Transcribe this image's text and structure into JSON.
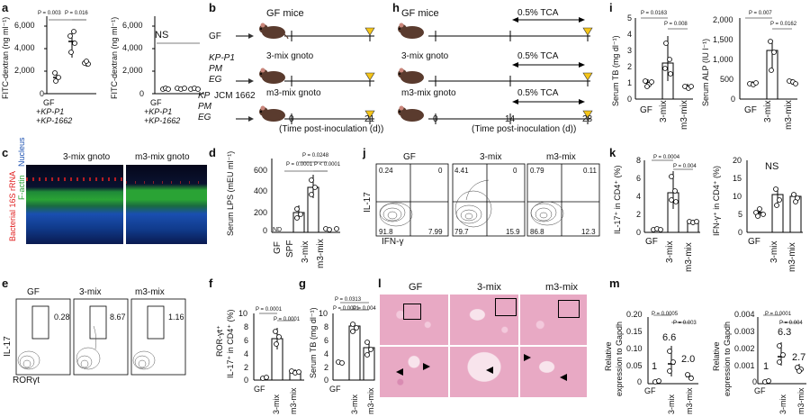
{
  "panels": {
    "a": {
      "label": "a",
      "plot1": {
        "ylabel": "FITC-dextran (ng ml⁻¹)",
        "yticks": [
          "0",
          "2,000",
          "4,000",
          "6,000"
        ],
        "groups": [
          "GF",
          "+KP-P1",
          "+KP-1662"
        ],
        "p1": "P = 0.003",
        "p2": "P = 0.016"
      },
      "plot2": {
        "ylabel": "FITC-dextran (ng ml⁻¹)",
        "yticks": [
          "0",
          "2,000",
          "4,000",
          "6,000"
        ],
        "groups": [
          "GF",
          "+KP-P1",
          "+KP-1662"
        ],
        "ns": "NS"
      }
    },
    "b": {
      "label": "b",
      "rows": [
        {
          "name": "GF",
          "mouse_label": "GF mice"
        },
        {
          "name1": "KP-P1",
          "name2": "PM",
          "name3": "EG",
          "mouse_label": "3-mix gnoto"
        },
        {
          "name1": "KP",
          "name1b": "JCM 1662",
          "name2": "PM",
          "name3": "EG",
          "mouse_label": "m3-mix gnoto"
        }
      ],
      "ticks": [
        "0",
        "21"
      ],
      "xlabel": "(Time post-inoculation (d))"
    },
    "h": {
      "label": "h",
      "rows": [
        "GF mice",
        "3-mix gnoto",
        "m3-mix gnoto"
      ],
      "treatment": "0.5% TCA",
      "ticks": [
        "0",
        "14",
        "28"
      ],
      "xlabel": "(Time post-inoculation (d))"
    },
    "i": {
      "label": "i",
      "plot1": {
        "ylabel": "Serum TB (mg dl⁻¹)",
        "yticks": [
          "0",
          "1",
          "2",
          "3",
          "4",
          "5"
        ],
        "groups": [
          "GF",
          "3-mix",
          "m3-mix"
        ],
        "p1": "P = 0.0163",
        "p2": "P = 0.008"
      },
      "plot2": {
        "ylabel": "Serum ALP (IU l⁻¹)",
        "yticks": [
          "0",
          "500",
          "1,000",
          "1,500",
          "2,000"
        ],
        "groups": [
          "GF",
          "3-mix",
          "m3-mix"
        ],
        "p1": "P = 0.007",
        "p2": "P = 0.0162"
      }
    },
    "c": {
      "label": "c",
      "titles": [
        "3-mix gnoto",
        "m3-mix gnoto"
      ],
      "legend": [
        "Bacterial 16S rRNA",
        "F-actin",
        "Nucleus"
      ]
    },
    "d": {
      "label": "d",
      "ylabel": "Serum LPS (mEU ml⁻¹)",
      "yticks": [
        "0",
        "200",
        "400",
        "600"
      ],
      "groups": [
        "GF",
        "SPF",
        "3-mix",
        "m3-mix"
      ],
      "nd": "ND",
      "p_top": "P = 0.0248",
      "p_a": "P = 0.0001",
      "p_b": "P < 0.0001"
    },
    "j": {
      "label": "j",
      "titles": [
        "GF",
        "3-mix",
        "m3-mix"
      ],
      "quad_values": [
        [
          "0.24",
          "0",
          "91.8",
          "7.99"
        ],
        [
          "4.41",
          "0",
          "79.7",
          "15.9"
        ],
        [
          "0.79",
          "0.11",
          "86.8",
          "12.3"
        ]
      ],
      "ylabel": "IL-17",
      "xlabel": "IFN-γ"
    },
    "k": {
      "label": "k",
      "plot1": {
        "ylabel": "IL-17⁺ in CD4⁺ (%)",
        "yticks": [
          "0",
          "2",
          "4",
          "6",
          "8"
        ],
        "groups": [
          "GF",
          "3-mix",
          "m3-mix"
        ],
        "p1": "P = 0.0004",
        "p2": "P = 0.004"
      },
      "plot2": {
        "ylabel": "IFN-γ⁺ in CD4⁺ (%)",
        "yticks": [
          "0",
          "5",
          "10",
          "15",
          "20"
        ],
        "groups": [
          "GF",
          "3-mix",
          "m3-mix"
        ],
        "ns": "NS"
      }
    },
    "e": {
      "label": "e",
      "titles": [
        "GF",
        "3-mix",
        "m3-mix"
      ],
      "values": [
        "0.28",
        "8.67",
        "1.16"
      ],
      "ylabel": "IL-17",
      "xlabel": "RORγt"
    },
    "f": {
      "label": "f",
      "ylabel1": "ROR-γt⁺",
      "ylabel2": "IL-17⁺ in CD4⁺ (%)",
      "yticks": [
        "0",
        "2",
        "4",
        "6",
        "8",
        "10"
      ],
      "groups": [
        "GF",
        "3-mix",
        "m3-mix"
      ],
      "p1": "P = 0.0001",
      "p2": "P = 0.0001"
    },
    "g": {
      "label": "g",
      "ylabel": "Serum TB (mg dl⁻¹)",
      "yticks": [
        "0",
        "2",
        "4",
        "6",
        "8",
        "10"
      ],
      "groups": [
        "GF",
        "3-mix",
        "m3-mix"
      ],
      "p_top": "P = 0.0313",
      "p1": "P = 0.0001",
      "p2": "P = 0.004"
    },
    "l": {
      "label": "l",
      "titles": [
        "GF",
        "3-mix",
        "m3-mix"
      ]
    },
    "m": {
      "label": "m",
      "plot1": {
        "ylabel1": "Relative",
        "ylabel2": "expression to Gapdh",
        "yticks": [
          "0",
          "0.05",
          "0.10",
          "0.15",
          "0.20"
        ],
        "groups": [
          "GF",
          "3-mix",
          "m3-mix"
        ],
        "p1": "P = 0.0005",
        "p2": "P = 0.003",
        "fold": [
          "1",
          "6.6",
          "2.0"
        ]
      },
      "plot2": {
        "ylabel1": "Relative",
        "ylabel2": "expression to Gapdh",
        "yticks": [
          "0",
          "0.001",
          "0.002",
          "0.003",
          "0.004"
        ],
        "groups": [
          "GF",
          "3-mix",
          "m3-mix"
        ],
        "p1": "P = 0.0001",
        "p2": "P = 0.004",
        "fold": [
          "1",
          "6.3",
          "2.7"
        ]
      }
    }
  },
  "colors": {
    "triangle": "#f5c518",
    "he_stain": "#e8a9c4",
    "he_dark": "#c46b9b",
    "fluor_green": "#2aa335",
    "fluor_blue": "#1a4fb0",
    "fluor_red": "#e02020"
  }
}
